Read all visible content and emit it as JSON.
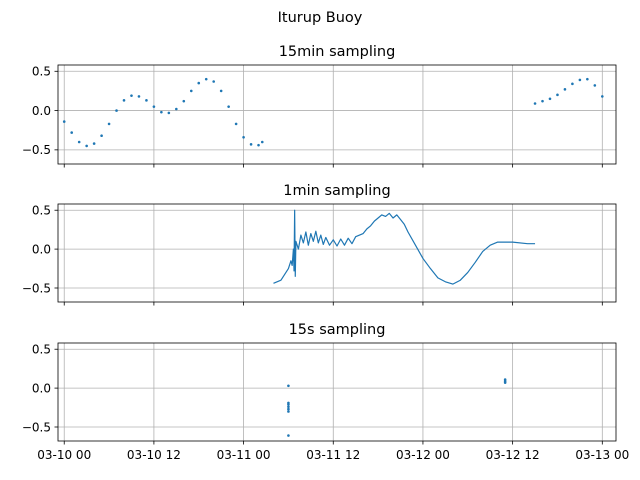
{
  "figure": {
    "title": "Iturup Buoy",
    "line_color": "#1f77b4",
    "grid_color": "#b0b0b0"
  },
  "chart_data": [
    {
      "type": "scatter",
      "title": "15min sampling",
      "xlabel": "",
      "ylabel": "",
      "grid": true,
      "xlim": [
        "2021-03-09T23:10",
        "2021-03-13T01:50"
      ],
      "ylim": [
        -0.68,
        0.58
      ],
      "xticks": [
        "2021-03-10T00:00",
        "2021-03-10T12:00",
        "2021-03-11T00:00",
        "2021-03-11T12:00",
        "2021-03-12T00:00",
        "2021-03-12T12:00",
        "2021-03-13T00:00"
      ],
      "xticklabels": [
        "03-10 00",
        "03-10 12",
        "03-11 00",
        "03-11 12",
        "03-12 00",
        "03-12 12",
        "03-13 00"
      ],
      "show_xticklabels": false,
      "yticks": [
        -0.5,
        0.0,
        0.5
      ],
      "yticklabels": [
        "−0.5",
        "0.0",
        "0.5"
      ],
      "series": [
        {
          "style": "dots",
          "points": [
            [
              "2021-03-10T00:00",
              -0.14
            ],
            [
              "2021-03-10T01:00",
              -0.28
            ],
            [
              "2021-03-10T02:00",
              -0.4
            ],
            [
              "2021-03-10T03:00",
              -0.45
            ],
            [
              "2021-03-10T04:00",
              -0.42
            ],
            [
              "2021-03-10T05:00",
              -0.32
            ],
            [
              "2021-03-10T06:00",
              -0.17
            ],
            [
              "2021-03-10T07:00",
              0.0
            ],
            [
              "2021-03-10T08:00",
              0.13
            ],
            [
              "2021-03-10T09:00",
              0.19
            ],
            [
              "2021-03-10T10:00",
              0.18
            ],
            [
              "2021-03-10T11:00",
              0.13
            ],
            [
              "2021-03-10T12:00",
              0.05
            ],
            [
              "2021-03-10T13:00",
              -0.02
            ],
            [
              "2021-03-10T14:00",
              -0.03
            ],
            [
              "2021-03-10T15:00",
              0.02
            ],
            [
              "2021-03-10T16:00",
              0.12
            ],
            [
              "2021-03-10T17:00",
              0.25
            ],
            [
              "2021-03-10T18:00",
              0.35
            ],
            [
              "2021-03-10T19:00",
              0.4
            ],
            [
              "2021-03-10T20:00",
              0.37
            ],
            [
              "2021-03-10T21:00",
              0.25
            ],
            [
              "2021-03-10T22:00",
              0.05
            ],
            [
              "2021-03-10T23:00",
              -0.17
            ],
            [
              "2021-03-11T00:00",
              -0.34
            ],
            [
              "2021-03-11T01:00",
              -0.43
            ],
            [
              "2021-03-11T02:00",
              -0.44
            ],
            [
              "2021-03-11T02:30",
              -0.4
            ],
            [
              "2021-03-12T15:00",
              0.09
            ],
            [
              "2021-03-12T16:00",
              0.12
            ],
            [
              "2021-03-12T17:00",
              0.15
            ],
            [
              "2021-03-12T18:00",
              0.2
            ],
            [
              "2021-03-12T19:00",
              0.27
            ],
            [
              "2021-03-12T20:00",
              0.34
            ],
            [
              "2021-03-12T21:00",
              0.39
            ],
            [
              "2021-03-12T22:00",
              0.4
            ],
            [
              "2021-03-12T23:00",
              0.32
            ],
            [
              "2021-03-13T00:00",
              0.18
            ]
          ]
        }
      ]
    },
    {
      "type": "line",
      "title": "1min sampling",
      "xlabel": "",
      "ylabel": "",
      "grid": true,
      "xlim": [
        "2021-03-09T23:10",
        "2021-03-13T01:50"
      ],
      "ylim": [
        -0.68,
        0.58
      ],
      "xticks": [
        "2021-03-10T00:00",
        "2021-03-10T12:00",
        "2021-03-11T00:00",
        "2021-03-11T12:00",
        "2021-03-12T00:00",
        "2021-03-12T12:00",
        "2021-03-13T00:00"
      ],
      "xticklabels": [
        "03-10 00",
        "03-10 12",
        "03-11 00",
        "03-11 12",
        "03-12 00",
        "03-12 12",
        "03-13 00"
      ],
      "show_xticklabels": false,
      "yticks": [
        -0.5,
        0.0,
        0.5
      ],
      "yticklabels": [
        "−0.5",
        "0.0",
        "0.5"
      ],
      "series": [
        {
          "style": "line",
          "points": [
            [
              "2021-03-11T04:00",
              -0.44
            ],
            [
              "2021-03-11T05:00",
              -0.4
            ],
            [
              "2021-03-11T05:40",
              -0.3
            ],
            [
              "2021-03-11T06:00",
              -0.25
            ],
            [
              "2021-03-11T06:20",
              -0.15
            ],
            [
              "2021-03-11T06:30",
              -0.21
            ],
            [
              "2021-03-11T06:40",
              0.0
            ],
            [
              "2021-03-11T06:45",
              -0.28
            ],
            [
              "2021-03-11T06:50",
              0.5
            ],
            [
              "2021-03-11T06:55",
              -0.35
            ],
            [
              "2021-03-11T07:00",
              0.1
            ],
            [
              "2021-03-11T07:20",
              0.0
            ],
            [
              "2021-03-11T07:40",
              0.18
            ],
            [
              "2021-03-11T08:00",
              0.08
            ],
            [
              "2021-03-11T08:20",
              0.22
            ],
            [
              "2021-03-11T08:40",
              0.05
            ],
            [
              "2021-03-11T09:00",
              0.2
            ],
            [
              "2021-03-11T09:20",
              0.1
            ],
            [
              "2021-03-11T09:40",
              0.23
            ],
            [
              "2021-03-11T10:00",
              0.08
            ],
            [
              "2021-03-11T10:20",
              0.18
            ],
            [
              "2021-03-11T10:40",
              0.06
            ],
            [
              "2021-03-11T11:00",
              0.15
            ],
            [
              "2021-03-11T11:30",
              0.05
            ],
            [
              "2021-03-11T12:00",
              0.12
            ],
            [
              "2021-03-11T12:30",
              0.04
            ],
            [
              "2021-03-11T13:00",
              0.13
            ],
            [
              "2021-03-11T13:30",
              0.05
            ],
            [
              "2021-03-11T14:00",
              0.14
            ],
            [
              "2021-03-11T14:30",
              0.07
            ],
            [
              "2021-03-11T15:00",
              0.16
            ],
            [
              "2021-03-11T16:00",
              0.2
            ],
            [
              "2021-03-11T16:30",
              0.26
            ],
            [
              "2021-03-11T17:00",
              0.3
            ],
            [
              "2021-03-11T17:30",
              0.36
            ],
            [
              "2021-03-11T18:00",
              0.4
            ],
            [
              "2021-03-11T18:30",
              0.44
            ],
            [
              "2021-03-11T19:00",
              0.42
            ],
            [
              "2021-03-11T19:30",
              0.46
            ],
            [
              "2021-03-11T20:00",
              0.4
            ],
            [
              "2021-03-11T20:30",
              0.44
            ],
            [
              "2021-03-11T21:00",
              0.38
            ],
            [
              "2021-03-11T21:30",
              0.32
            ],
            [
              "2021-03-11T22:00",
              0.22
            ],
            [
              "2021-03-11T23:00",
              0.05
            ],
            [
              "2021-03-12T00:00",
              -0.12
            ],
            [
              "2021-03-12T01:00",
              -0.25
            ],
            [
              "2021-03-12T02:00",
              -0.37
            ],
            [
              "2021-03-12T03:00",
              -0.42
            ],
            [
              "2021-03-12T04:00",
              -0.45
            ],
            [
              "2021-03-12T05:00",
              -0.4
            ],
            [
              "2021-03-12T06:00",
              -0.3
            ],
            [
              "2021-03-12T07:00",
              -0.17
            ],
            [
              "2021-03-12T08:00",
              -0.03
            ],
            [
              "2021-03-12T09:00",
              0.05
            ],
            [
              "2021-03-12T10:00",
              0.09
            ],
            [
              "2021-03-12T12:00",
              0.09
            ],
            [
              "2021-03-12T14:00",
              0.07
            ],
            [
              "2021-03-12T15:00",
              0.07
            ]
          ]
        }
      ]
    },
    {
      "type": "scatter",
      "title": "15s sampling",
      "xlabel": "",
      "ylabel": "",
      "grid": true,
      "xlim": [
        "2021-03-09T23:10",
        "2021-03-13T01:50"
      ],
      "ylim": [
        -0.68,
        0.58
      ],
      "xticks": [
        "2021-03-10T00:00",
        "2021-03-10T12:00",
        "2021-03-11T00:00",
        "2021-03-11T12:00",
        "2021-03-12T00:00",
        "2021-03-12T12:00",
        "2021-03-13T00:00"
      ],
      "xticklabels": [
        "03-10 00",
        "03-10 12",
        "03-11 00",
        "03-11 12",
        "03-12 00",
        "03-12 12",
        "03-13 00"
      ],
      "show_xticklabels": true,
      "yticks": [
        -0.5,
        0.0,
        0.5
      ],
      "yticklabels": [
        "−0.5",
        "0.0",
        "0.5"
      ],
      "series": [
        {
          "style": "dots",
          "points": [
            [
              "2021-03-11T06:00",
              0.03
            ],
            [
              "2021-03-11T06:00",
              -0.19
            ],
            [
              "2021-03-11T06:00",
              -0.21
            ],
            [
              "2021-03-11T06:00",
              -0.24
            ],
            [
              "2021-03-11T06:00",
              -0.27
            ],
            [
              "2021-03-11T06:00",
              -0.3
            ],
            [
              "2021-03-11T06:00",
              -0.61
            ],
            [
              "2021-03-12T11:00",
              0.11
            ],
            [
              "2021-03-12T11:00",
              0.09
            ],
            [
              "2021-03-12T11:00",
              0.07
            ]
          ]
        }
      ]
    }
  ]
}
